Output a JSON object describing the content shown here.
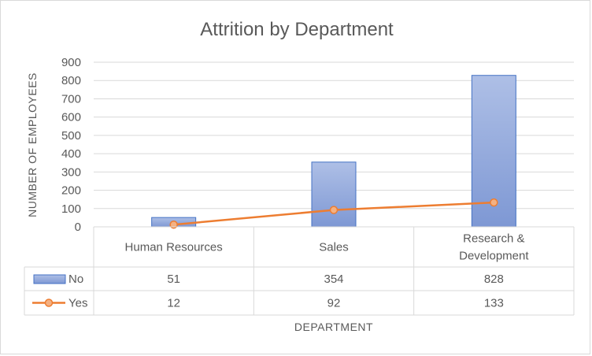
{
  "chart_data": {
    "type": "bar",
    "title": "Attrition by Department",
    "xlabel": "DEPARTMENT",
    "ylabel": "NUMBER OF EMPLOYEES",
    "ylim": [
      0,
      900
    ],
    "yticks": [
      "0",
      "100",
      "200",
      "300",
      "400",
      "500",
      "600",
      "700",
      "800",
      "900"
    ],
    "grid": true,
    "legend": "data-table",
    "categories": [
      [
        "Human Resources"
      ],
      [
        "Sales"
      ],
      [
        "Research &",
        "Development"
      ]
    ],
    "series": [
      {
        "name": "No",
        "type": "bar",
        "color": "#8faadc",
        "values": [
          51,
          354,
          828
        ],
        "labels": [
          "51",
          "354",
          "828"
        ]
      },
      {
        "name": "Yes",
        "type": "line",
        "color": "#ed7d31",
        "values": [
          12,
          92,
          133
        ],
        "labels": [
          "12",
          "92",
          "133"
        ]
      }
    ]
  }
}
